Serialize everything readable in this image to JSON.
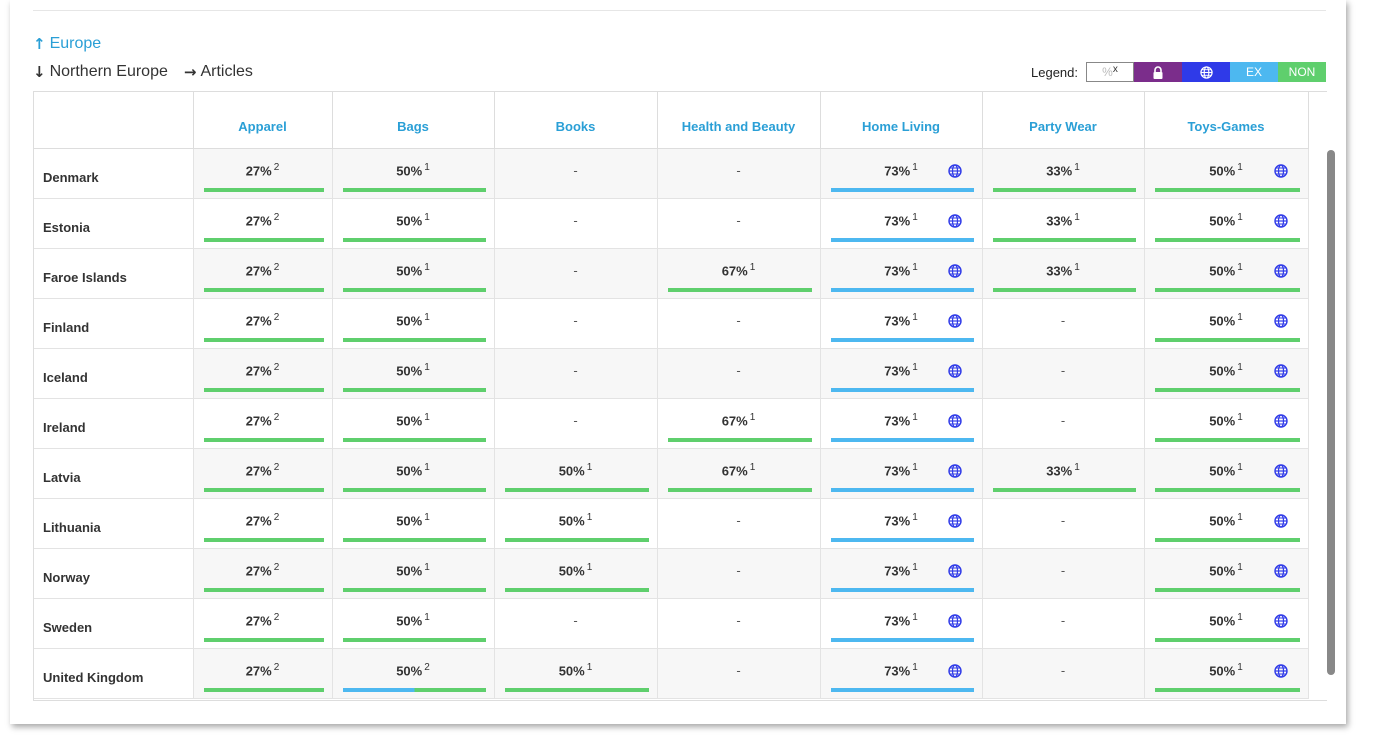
{
  "nav": {
    "up_label": "Europe",
    "down_label": "Northern Europe",
    "right_label": "Articles"
  },
  "legend": {
    "label": "Legend:",
    "pct_symbol": "%",
    "pct_sup": "x",
    "ex": "EX",
    "non": "NON"
  },
  "colors": {
    "link": "#2a9fd6",
    "non": "#5fcf6d",
    "ex": "#4db8f0",
    "lock": "#7b2d8b",
    "globe": "#2f3ae8"
  },
  "columns": [
    "Apparel",
    "Bags",
    "Books",
    "Health and Beauty",
    "Home Living",
    "Party Wear",
    "Toys-Games"
  ],
  "rows": [
    {
      "country": "Denmark",
      "cells": [
        {
          "v": "27%",
          "s": "2",
          "b": "non"
        },
        {
          "v": "50%",
          "s": "1",
          "b": "non"
        },
        {
          "v": "-"
        },
        {
          "v": "-"
        },
        {
          "v": "73%",
          "s": "1",
          "b": "ex",
          "g": true
        },
        {
          "v": "33%",
          "s": "1",
          "b": "non"
        },
        {
          "v": "50%",
          "s": "1",
          "b": "non",
          "g": true
        }
      ]
    },
    {
      "country": "Estonia",
      "cells": [
        {
          "v": "27%",
          "s": "2",
          "b": "non"
        },
        {
          "v": "50%",
          "s": "1",
          "b": "non"
        },
        {
          "v": "-"
        },
        {
          "v": "-"
        },
        {
          "v": "73%",
          "s": "1",
          "b": "ex",
          "g": true
        },
        {
          "v": "33%",
          "s": "1",
          "b": "non"
        },
        {
          "v": "50%",
          "s": "1",
          "b": "non",
          "g": true
        }
      ]
    },
    {
      "country": "Faroe Islands",
      "cells": [
        {
          "v": "27%",
          "s": "2",
          "b": "non"
        },
        {
          "v": "50%",
          "s": "1",
          "b": "non"
        },
        {
          "v": "-"
        },
        {
          "v": "67%",
          "s": "1",
          "b": "non"
        },
        {
          "v": "73%",
          "s": "1",
          "b": "ex",
          "g": true
        },
        {
          "v": "33%",
          "s": "1",
          "b": "non"
        },
        {
          "v": "50%",
          "s": "1",
          "b": "non",
          "g": true
        }
      ]
    },
    {
      "country": "Finland",
      "cells": [
        {
          "v": "27%",
          "s": "2",
          "b": "non"
        },
        {
          "v": "50%",
          "s": "1",
          "b": "non"
        },
        {
          "v": "-"
        },
        {
          "v": "-"
        },
        {
          "v": "73%",
          "s": "1",
          "b": "ex",
          "g": true
        },
        {
          "v": "-"
        },
        {
          "v": "50%",
          "s": "1",
          "b": "non",
          "g": true
        }
      ]
    },
    {
      "country": "Iceland",
      "cells": [
        {
          "v": "27%",
          "s": "2",
          "b": "non"
        },
        {
          "v": "50%",
          "s": "1",
          "b": "non"
        },
        {
          "v": "-"
        },
        {
          "v": "-"
        },
        {
          "v": "73%",
          "s": "1",
          "b": "ex",
          "g": true
        },
        {
          "v": "-"
        },
        {
          "v": "50%",
          "s": "1",
          "b": "non",
          "g": true
        }
      ]
    },
    {
      "country": "Ireland",
      "cells": [
        {
          "v": "27%",
          "s": "2",
          "b": "non"
        },
        {
          "v": "50%",
          "s": "1",
          "b": "non"
        },
        {
          "v": "-"
        },
        {
          "v": "67%",
          "s": "1",
          "b": "non"
        },
        {
          "v": "73%",
          "s": "1",
          "b": "ex",
          "g": true
        },
        {
          "v": "-"
        },
        {
          "v": "50%",
          "s": "1",
          "b": "non",
          "g": true
        }
      ]
    },
    {
      "country": "Latvia",
      "cells": [
        {
          "v": "27%",
          "s": "2",
          "b": "non"
        },
        {
          "v": "50%",
          "s": "1",
          "b": "non"
        },
        {
          "v": "50%",
          "s": "1",
          "b": "non"
        },
        {
          "v": "67%",
          "s": "1",
          "b": "non"
        },
        {
          "v": "73%",
          "s": "1",
          "b": "ex",
          "g": true
        },
        {
          "v": "33%",
          "s": "1",
          "b": "non"
        },
        {
          "v": "50%",
          "s": "1",
          "b": "non",
          "g": true
        }
      ]
    },
    {
      "country": "Lithuania",
      "cells": [
        {
          "v": "27%",
          "s": "2",
          "b": "non"
        },
        {
          "v": "50%",
          "s": "1",
          "b": "non"
        },
        {
          "v": "50%",
          "s": "1",
          "b": "non"
        },
        {
          "v": "-"
        },
        {
          "v": "73%",
          "s": "1",
          "b": "ex",
          "g": true
        },
        {
          "v": "-"
        },
        {
          "v": "50%",
          "s": "1",
          "b": "non",
          "g": true
        }
      ]
    },
    {
      "country": "Norway",
      "cells": [
        {
          "v": "27%",
          "s": "2",
          "b": "non"
        },
        {
          "v": "50%",
          "s": "1",
          "b": "non"
        },
        {
          "v": "50%",
          "s": "1",
          "b": "non"
        },
        {
          "v": "-"
        },
        {
          "v": "73%",
          "s": "1",
          "b": "ex",
          "g": true
        },
        {
          "v": "-"
        },
        {
          "v": "50%",
          "s": "1",
          "b": "non",
          "g": true
        }
      ]
    },
    {
      "country": "Sweden",
      "cells": [
        {
          "v": "27%",
          "s": "2",
          "b": "non"
        },
        {
          "v": "50%",
          "s": "1",
          "b": "non"
        },
        {
          "v": "-"
        },
        {
          "v": "-"
        },
        {
          "v": "73%",
          "s": "1",
          "b": "ex",
          "g": true
        },
        {
          "v": "-"
        },
        {
          "v": "50%",
          "s": "1",
          "b": "non",
          "g": true
        }
      ]
    },
    {
      "country": "United Kingdom",
      "cells": [
        {
          "v": "27%",
          "s": "2",
          "b": "non"
        },
        {
          "v": "50%",
          "s": "2",
          "b": "split"
        },
        {
          "v": "50%",
          "s": "1",
          "b": "non"
        },
        {
          "v": "-"
        },
        {
          "v": "73%",
          "s": "1",
          "b": "ex",
          "g": true
        },
        {
          "v": "-"
        },
        {
          "v": "50%",
          "s": "1",
          "b": "non",
          "g": true
        }
      ]
    }
  ]
}
